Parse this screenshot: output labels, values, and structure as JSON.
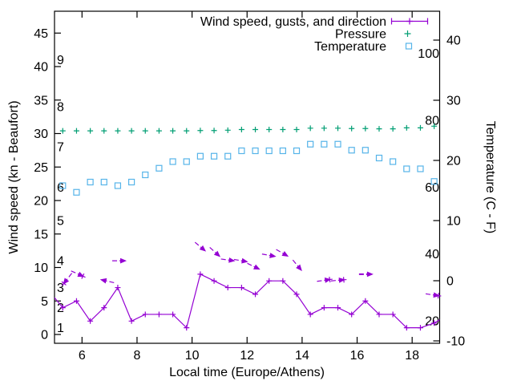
{
  "figure": {
    "background": "#ffffff",
    "axis_color": "#000000",
    "legend": {
      "entries": [
        {
          "label": "Wind speed, gusts, and direction",
          "series": "wind",
          "color": "#9400d3",
          "sample": "errorbar"
        },
        {
          "label": "Pressure",
          "series": "pressure",
          "color": "#009e73",
          "sample": "plus"
        },
        {
          "label": "Temperature",
          "series": "temperature",
          "color": "#56b4e9",
          "sample": "open-square"
        }
      ]
    }
  },
  "chart_data": {
    "type": "line",
    "title": "",
    "xlabel": "Local time (Europe/Athens)",
    "ylabel_left": "Wind speed (kn - Beaufort)",
    "ylabel_right": "Temperature (C - F)",
    "x_range": [
      5,
      19
    ],
    "y_left_range": [
      -1.3,
      48.3
    ],
    "y_right_range_c": [
      -10.4,
      44.8
    ],
    "x_ticks": [
      6,
      8,
      10,
      12,
      14,
      16,
      18
    ],
    "y_left_ticks": [
      0,
      5,
      10,
      15,
      20,
      25,
      30,
      35,
      40,
      45
    ],
    "y_right_ticks_c": [
      -10,
      0,
      10,
      20,
      30,
      40
    ],
    "beaufort_labels": [
      {
        "label": "1",
        "kn": 1
      },
      {
        "label": "2",
        "kn": 4
      },
      {
        "label": "3",
        "kn": 7
      },
      {
        "label": "4",
        "kn": 11
      },
      {
        "label": "5",
        "kn": 17
      },
      {
        "label": "6",
        "kn": 22
      },
      {
        "label": "7",
        "kn": 28
      },
      {
        "label": "8",
        "kn": 34
      },
      {
        "label": "9",
        "kn": 41
      }
    ],
    "fahrenheit_labels": [
      {
        "label": "20",
        "f": 20
      },
      {
        "label": "40",
        "f": 40
      },
      {
        "label": "60",
        "f": 60
      },
      {
        "label": "80",
        "f": 80
      },
      {
        "label": "100",
        "f": 100
      }
    ],
    "x": [
      5.3,
      5.8,
      6.3,
      6.8,
      7.3,
      7.8,
      8.3,
      8.8,
      9.3,
      9.8,
      10.3,
      10.8,
      11.3,
      11.8,
      12.3,
      12.8,
      13.3,
      13.8,
      14.3,
      14.8,
      15.3,
      15.8,
      16.3,
      16.8,
      17.3,
      17.8,
      18.3,
      18.8
    ],
    "series": [
      {
        "name": "Wind speed, gusts, and direction",
        "axis": "left",
        "style": "line-with-cross",
        "color": "#9400d3",
        "values": [
          4,
          5,
          2,
          4,
          7,
          2,
          3,
          3,
          3,
          1,
          9,
          8,
          7,
          7,
          6,
          8,
          8,
          6,
          3,
          4,
          4,
          3,
          5,
          3,
          3,
          1,
          1,
          1.7
        ],
        "lead_in": {
          "x": 5.0,
          "y": 5.5
        },
        "lead_out": {
          "x": 19.0,
          "y": 2.2
        }
      },
      {
        "name": "Pressure",
        "axis": "left",
        "style": "cross",
        "color": "#009e73",
        "values": [
          30.4,
          30.4,
          30.4,
          30.4,
          30.4,
          30.4,
          30.4,
          30.4,
          30.4,
          30.4,
          30.45,
          30.45,
          30.5,
          30.6,
          30.6,
          30.6,
          30.6,
          30.6,
          30.8,
          30.8,
          30.8,
          30.75,
          30.75,
          30.7,
          30.7,
          30.85,
          30.85,
          31.1
        ]
      },
      {
        "name": "Temperature",
        "axis": "right",
        "style": "open-square",
        "color": "#56b4e9",
        "values": [
          15.8,
          14.7,
          16.4,
          16.4,
          15.8,
          16.4,
          17.6,
          18.7,
          19.8,
          19.8,
          20.7,
          20.7,
          20.7,
          21.6,
          21.6,
          21.6,
          21.6,
          21.6,
          22.7,
          22.7,
          22.7,
          21.7,
          21.7,
          20.4,
          19.8,
          18.6,
          18.6,
          16.5
        ]
      }
    ],
    "gust_arrows": [
      {
        "x": 5.45,
        "y": 8.2,
        "angle": 128,
        "plus": true
      },
      {
        "x": 5.87,
        "y": 9.0,
        "angle": 24,
        "plus": true
      },
      {
        "x": 6.88,
        "y": 8.0,
        "angle": -167,
        "plus": false
      },
      {
        "x": 7.39,
        "y": 11.0,
        "angle": 0,
        "plus": false
      },
      {
        "x": 10.33,
        "y": 13.0,
        "angle": 40,
        "plus": false
      },
      {
        "x": 10.86,
        "y": 12.2,
        "angle": 42,
        "plus": false
      },
      {
        "x": 11.34,
        "y": 11.1,
        "angle": 8,
        "plus": false
      },
      {
        "x": 11.81,
        "y": 11.0,
        "angle": 10,
        "plus": false
      },
      {
        "x": 12.27,
        "y": 10.1,
        "angle": 26,
        "plus": false
      },
      {
        "x": 12.83,
        "y": 11.8,
        "angle": 10,
        "plus": false
      },
      {
        "x": 13.31,
        "y": 12.1,
        "angle": 30,
        "plus": false
      },
      {
        "x": 13.85,
        "y": 10.2,
        "angle": 50,
        "plus": false
      },
      {
        "x": 14.83,
        "y": 8.1,
        "angle": -8,
        "plus": true
      },
      {
        "x": 15.34,
        "y": 8.1,
        "angle": -5,
        "plus": true
      },
      {
        "x": 16.36,
        "y": 9.0,
        "angle": 0,
        "plus": false,
        "width": 2
      },
      {
        "x": 18.78,
        "y": 5.9,
        "angle": 8,
        "plus": true
      }
    ]
  }
}
